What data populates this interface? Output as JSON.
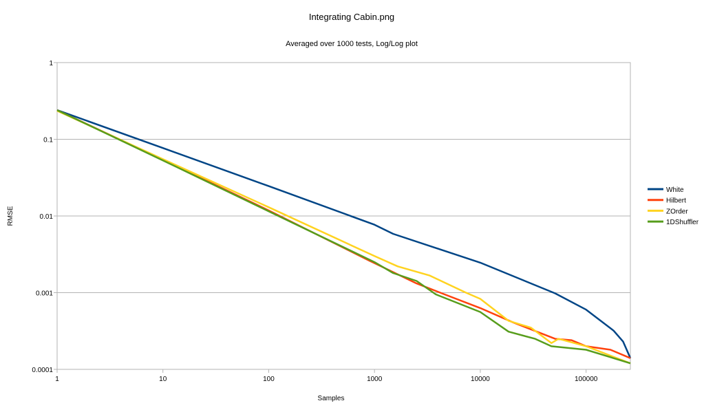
{
  "chart_data": {
    "type": "line",
    "title": "Integrating Cabin.png",
    "subtitle": "Averaged over 1000 tests, Log/Log plot",
    "xlabel": "Samples",
    "ylabel": "RMSE",
    "xscale": "log",
    "yscale": "log",
    "xlim": [
      1,
      262144
    ],
    "ylim": [
      0.0001,
      1
    ],
    "xticks": [
      "1",
      "10",
      "100",
      "1000",
      "10000",
      "100000"
    ],
    "xtick_values": [
      1,
      10,
      100,
      1000,
      10000,
      100000
    ],
    "yticks": [
      "1",
      "0.1",
      "0.01",
      "0.001",
      "0.0001"
    ],
    "ytick_values": [
      1,
      0.1,
      0.01,
      0.001,
      0.0001
    ],
    "grid": "horizontal",
    "legend_position": "right",
    "series": [
      {
        "name": "White",
        "color": "#004586",
        "x": [
          1,
          10,
          100,
          1000,
          1500,
          10000,
          51000,
          100000,
          182000,
          224000,
          262144
        ],
        "y": [
          0.24,
          0.077,
          0.0245,
          0.0077,
          0.00585,
          0.00246,
          0.00098,
          0.0006,
          0.00032,
          0.00023,
          0.00014
        ]
      },
      {
        "name": "Hilbert",
        "color": "#ff420e",
        "x": [
          1,
          10,
          100,
          900,
          2500,
          4600,
          10000,
          20400,
          51000,
          73000,
          100000,
          170000,
          262144
        ],
        "y": [
          0.24,
          0.054,
          0.0118,
          0.0026,
          0.00132,
          0.00095,
          0.00063,
          0.00041,
          0.00025,
          0.00024,
          0.0002,
          0.00018,
          0.00014
        ]
      },
      {
        "name": "ZOrder",
        "color": "#ffd320",
        "x": [
          1,
          10,
          100,
          1000,
          1660,
          3300,
          7200,
          10000,
          18500,
          30000,
          47000,
          55000,
          100000,
          262144
        ],
        "y": [
          0.235,
          0.055,
          0.013,
          0.003,
          0.0022,
          0.00168,
          0.00101,
          0.00083,
          0.00043,
          0.00035,
          0.00022,
          0.00025,
          0.0002,
          0.00012
        ]
      },
      {
        "name": "1DShuffler",
        "color": "#579d1c",
        "x": [
          1,
          10,
          100,
          1000,
          1500,
          2500,
          3800,
          10000,
          18500,
          33000,
          47000,
          100000,
          262144
        ],
        "y": [
          0.24,
          0.053,
          0.0115,
          0.0025,
          0.0018,
          0.00142,
          0.00095,
          0.00056,
          0.00031,
          0.00025,
          0.0002,
          0.00018,
          0.00012
        ]
      }
    ]
  }
}
